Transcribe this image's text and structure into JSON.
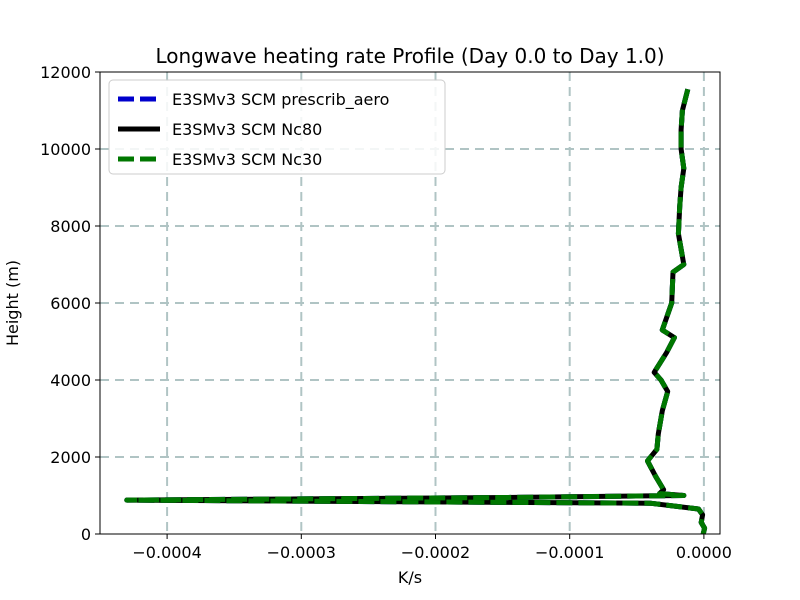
{
  "chart_data": {
    "type": "line",
    "title": "Longwave heating rate Profile (Day 0.0 to Day 1.0)",
    "xlabel": "K/s",
    "ylabel": "Height (m)",
    "xlim": [
      -0.00045,
      1.2e-05
    ],
    "ylim": [
      0,
      12000
    ],
    "xticks": [
      -0.0004,
      -0.0003,
      -0.0002,
      -0.0001,
      0.0
    ],
    "xtick_labels": [
      "−0.0004",
      "−0.0003",
      "−0.0002",
      "−0.0001",
      "0.0000"
    ],
    "yticks": [
      0,
      2000,
      4000,
      6000,
      8000,
      10000,
      12000
    ],
    "ytick_labels": [
      "0",
      "2000",
      "4000",
      "6000",
      "8000",
      "10000",
      "12000"
    ],
    "grid": true,
    "legend_position": "upper-left",
    "series": [
      {
        "name": "E3SMv3 SCM prescrib_aero",
        "color": "#0000cc",
        "style": "dashed",
        "x": [
          -5e-07,
          5e-07,
          -2e-06,
          -1e-06,
          -4e-06,
          -4e-05,
          -0.00043,
          -0.00014,
          -1.5e-05,
          -3.3e-05,
          -3e-05,
          -3.6e-05,
          -4.2e-05,
          -3.5e-05,
          -3.4e-05,
          -3.1e-05,
          -2.7e-05,
          -3.2e-05,
          -3.7e-05,
          -2.8e-05,
          -2.2e-05,
          -3.1e-05,
          -2.4e-05,
          -2.3e-05,
          -1.5e-05,
          -1.9e-05,
          -1.8e-05,
          -1.7e-05,
          -1.5e-05,
          -1.7e-05,
          -1.7e-05,
          -1.6e-05,
          -1.2e-05
        ],
        "y": [
          0,
          150,
          300,
          500,
          650,
          800,
          880,
          950,
          1000,
          1050,
          1150,
          1500,
          1900,
          2200,
          2600,
          3200,
          3700,
          4000,
          4200,
          4700,
          5100,
          5300,
          6000,
          6800,
          7000,
          7800,
          8500,
          9000,
          9500,
          10000,
          10500,
          11000,
          11550
        ]
      },
      {
        "name": "E3SMv3 SCM Nc80",
        "color": "#000000",
        "style": "solid",
        "x": [
          -5e-07,
          5e-07,
          -2e-06,
          -1e-06,
          -4e-06,
          -4e-05,
          -0.00043,
          -0.00014,
          -1.5e-05,
          -3.3e-05,
          -3e-05,
          -3.6e-05,
          -4.2e-05,
          -3.5e-05,
          -3.4e-05,
          -3.1e-05,
          -2.7e-05,
          -3.2e-05,
          -3.7e-05,
          -2.8e-05,
          -2.2e-05,
          -3.1e-05,
          -2.4e-05,
          -2.3e-05,
          -1.5e-05,
          -1.9e-05,
          -1.8e-05,
          -1.7e-05,
          -1.5e-05,
          -1.7e-05,
          -1.7e-05,
          -1.6e-05,
          -1.2e-05
        ],
        "y": [
          0,
          150,
          300,
          500,
          650,
          800,
          880,
          950,
          1000,
          1050,
          1150,
          1500,
          1900,
          2200,
          2600,
          3200,
          3700,
          4000,
          4200,
          4700,
          5100,
          5300,
          6000,
          6800,
          7000,
          7800,
          8500,
          9000,
          9500,
          10000,
          10500,
          11000,
          11550
        ]
      },
      {
        "name": "E3SMv3 SCM Nc30",
        "color": "#007700",
        "style": "dashed",
        "x": [
          -5e-07,
          5e-07,
          -2e-06,
          -1e-06,
          -4e-06,
          -4e-05,
          -0.00043,
          -0.00014,
          -1.5e-05,
          -3.3e-05,
          -3e-05,
          -3.6e-05,
          -4.2e-05,
          -3.5e-05,
          -3.4e-05,
          -3.1e-05,
          -2.7e-05,
          -3.2e-05,
          -3.7e-05,
          -2.8e-05,
          -2.2e-05,
          -3.1e-05,
          -2.4e-05,
          -2.3e-05,
          -1.5e-05,
          -1.9e-05,
          -1.8e-05,
          -1.7e-05,
          -1.5e-05,
          -1.7e-05,
          -1.7e-05,
          -1.6e-05,
          -1.2e-05
        ],
        "y": [
          0,
          150,
          300,
          500,
          650,
          800,
          880,
          950,
          1000,
          1050,
          1150,
          1500,
          1900,
          2200,
          2600,
          3200,
          3700,
          4000,
          4200,
          4700,
          5100,
          5300,
          6000,
          6800,
          7000,
          7800,
          8500,
          9000,
          9500,
          10000,
          10500,
          11000,
          11550
        ]
      }
    ]
  }
}
